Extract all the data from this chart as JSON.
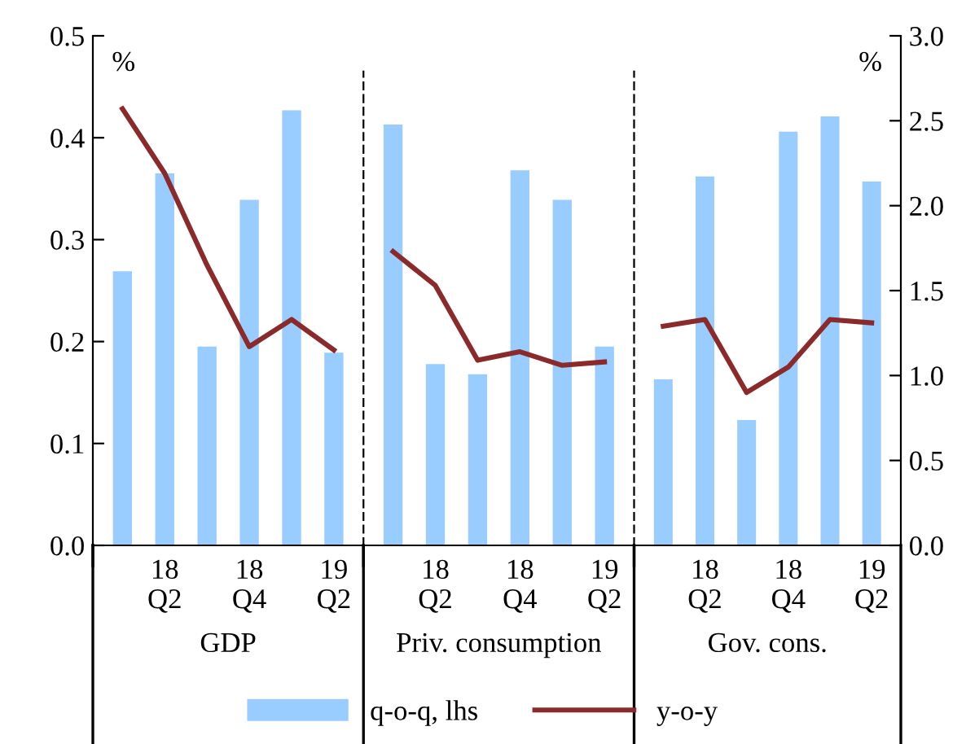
{
  "chart_data": [
    {
      "type": "bar",
      "xlabel": "GDP",
      "categories": [
        null,
        "18\nQ2",
        null,
        "18\nQ4",
        null,
        "19\nQ2"
      ],
      "ylim": [
        0,
        0.5
      ],
      "yticks": [
        {
          "value": 0,
          "label": "0.0"
        },
        0.1,
        0.2,
        0.3,
        0.4,
        0.5
      ],
      "y2lim": [
        0,
        3
      ],
      "tick_labels": [
        "x",
        "y"
      ],
      "annotations": [
        "%"
      ],
      "legend": "bottom",
      "grid": false,
      "series": [
        {
          "name": "q-o-q, lhs",
          "color": "#99ccff",
          "values": [
            0.269,
            0.365,
            0.195,
            0.339,
            0.427,
            0.189
          ]
        },
        {
          "name": "y-o-y",
          "type": "line",
          "axis": "y2",
          "color": "#8b2a2a",
          "values": [
            2.57,
            2.19,
            1.65,
            1.17,
            1.33,
            1.15
          ]
        }
      ]
    },
    {
      "type": "bar",
      "xlabel": "Priv. consumption",
      "categories": [
        null,
        "18\nQ2",
        null,
        "18\nQ4",
        null,
        "19\nQ2"
      ],
      "ylim": [
        0,
        0.5
      ],
      "y2lim": [
        0,
        3
      ],
      "tick_labels": [
        "x"
      ],
      "grid": false,
      "series": [
        {
          "name": "q-o-q, lhs",
          "color": "#99ccff",
          "values": [
            0.413,
            0.178,
            0.168,
            0.368,
            0.339,
            0.195
          ]
        },
        {
          "name": "y-o-y",
          "type": "line",
          "axis": "y2",
          "color": "#8b2a2a",
          "values": [
            1.73,
            1.53,
            1.09,
            1.14,
            1.06,
            1.08
          ]
        }
      ]
    },
    {
      "type": "bar",
      "xlabel": "Gov. cons.",
      "categories": [
        null,
        "18\nQ2",
        null,
        "18\nQ4",
        null,
        "19\nQ2"
      ],
      "ylim": [
        0,
        0.5
      ],
      "y2lim": [
        0,
        3
      ],
      "y2ticks": [
        {
          "value": 0,
          "label": "0.0"
        },
        0.5,
        {
          "value": 1,
          "label": "1.0"
        },
        1.5,
        {
          "value": 2,
          "label": "2.0"
        },
        2.5,
        {
          "value": 3,
          "label": "3.0"
        }
      ],
      "tick_labels": [
        "x",
        "y2"
      ],
      "annotations": [
        "%"
      ],
      "grid": false,
      "series": [
        {
          "name": "q-o-q, lhs",
          "color": "#99ccff",
          "values": [
            0.163,
            0.362,
            0.123,
            0.406,
            0.421,
            0.357
          ]
        },
        {
          "name": "y-o-y",
          "type": "line",
          "axis": "y2",
          "color": "#8b2a2a",
          "values": [
            1.29,
            1.33,
            0.9,
            1.05,
            1.33,
            1.31
          ]
        }
      ]
    }
  ]
}
